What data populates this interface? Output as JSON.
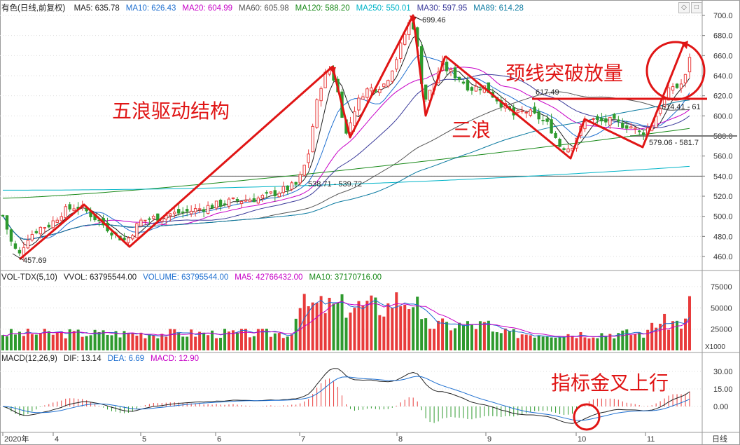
{
  "main_panel": {
    "title": "有色(日线,前复权)",
    "indicators": [
      {
        "label": "MA5: 635.78",
        "color": "#222222"
      },
      {
        "label": "MA10: 626.43",
        "color": "#1e6fd0"
      },
      {
        "label": "MA20: 604.99",
        "color": "#c700c7"
      },
      {
        "label": "MA60: 605.98",
        "color": "#555555"
      },
      {
        "label": "MA120: 588.20",
        "color": "#1a8a1a"
      },
      {
        "label": "MA250: 550.01",
        "color": "#00b4c8"
      },
      {
        "label": "MA30: 597.95",
        "color": "#3a3a9a"
      },
      {
        "label": "MA89: 614.28",
        "color": "#0a7aa0"
      }
    ],
    "y_ticks": [
      "700.0",
      "680.0",
      "660.0",
      "640.0",
      "620.0",
      "600.0",
      "580.0",
      "560.0",
      "540.0",
      "520.0",
      "500.0",
      "480.0",
      "460.0"
    ],
    "price_labels": {
      "low": "457.69",
      "high": "699.46",
      "mid_gap": "538.71 - 539.72",
      "peak2": "617.49",
      "gap2": "579.06 - 581.7",
      "gap3": "614.41 - 61"
    },
    "annotations": {
      "five_wave": "五浪驱动结构",
      "three_wave": "三浪",
      "neckline": "颈线突破放量"
    },
    "reference_lines": [
      540,
      580,
      617
    ]
  },
  "volume_panel": {
    "indicators": [
      {
        "label": "VOL-TDX(5,10)",
        "color": "#222222"
      },
      {
        "label": "VVOL: 63795544.00",
        "color": "#222222"
      },
      {
        "label": "VOLUME: 63795544.00",
        "color": "#1e6fd0"
      },
      {
        "label": "MA5: 42766432.00",
        "color": "#c700c7"
      },
      {
        "label": "MA10: 37170716.00",
        "color": "#1a8a1a"
      }
    ],
    "y_ticks": [
      "75000",
      "50000",
      "25000"
    ],
    "unit": "X1000"
  },
  "macd_panel": {
    "indicators": [
      {
        "label": "MACD(12,26,9)",
        "color": "#222222"
      },
      {
        "label": "DIF: 13.14",
        "color": "#222222"
      },
      {
        "label": "DEA: 6.69",
        "color": "#1e6fd0"
      },
      {
        "label": "MACD: 12.90",
        "color": "#c700c7"
      }
    ],
    "y_ticks": [
      "30.00",
      "15.00",
      "0.00"
    ],
    "annotation": "指标金叉上行"
  },
  "x_axis": {
    "labels": [
      "2020年",
      "4",
      "5",
      "6",
      "7",
      "8",
      "9",
      "10",
      "11"
    ],
    "period_label": "日线"
  },
  "controls": {
    "restore": "◇",
    "close": "□"
  }
}
